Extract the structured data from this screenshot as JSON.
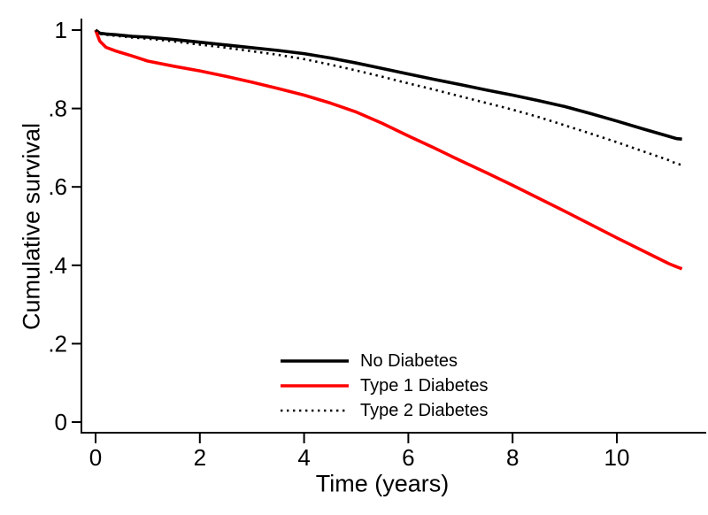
{
  "chart_data": {
    "type": "line",
    "title": "",
    "xlabel": "Time (years)",
    "ylabel": "Cumulative survival",
    "xlim": [
      0,
      11.72
    ],
    "ylim": [
      0,
      1.03
    ],
    "grid": false,
    "legend_position": "inside-bottom-center",
    "x_ticks": {
      "values": [
        0,
        2,
        4,
        6,
        8,
        10
      ],
      "labels": [
        "0",
        "2",
        "4",
        "6",
        "8",
        "10"
      ]
    },
    "y_ticks": {
      "values": [
        0,
        0.2,
        0.4,
        0.6,
        0.8,
        1.0
      ],
      "labels": [
        "0",
        ".2",
        ".4",
        ".6",
        ".8",
        "1"
      ]
    },
    "x": [
      0,
      0.08,
      0.2,
      0.4,
      0.7,
      1,
      1.5,
      2,
      2.5,
      3,
      3.5,
      4,
      4.5,
      5,
      5.5,
      6,
      6.5,
      7,
      7.5,
      8,
      8.5,
      9,
      9.5,
      10,
      10.5,
      11,
      11.15,
      11.25
    ],
    "series": [
      {
        "name": "No Diabetes",
        "color": "#000000",
        "style": "solid",
        "values": [
          1.0,
          0.992,
          0.99,
          0.988,
          0.984,
          0.982,
          0.976,
          0.969,
          0.962,
          0.955,
          0.948,
          0.94,
          0.929,
          0.916,
          0.902,
          0.888,
          0.874,
          0.861,
          0.847,
          0.834,
          0.82,
          0.805,
          0.787,
          0.768,
          0.748,
          0.729,
          0.723,
          0.722
        ]
      },
      {
        "name": "Type 1 Diabetes",
        "color": "#ff0000",
        "style": "solid",
        "values": [
          1.0,
          0.972,
          0.956,
          0.946,
          0.934,
          0.921,
          0.908,
          0.896,
          0.882,
          0.867,
          0.851,
          0.834,
          0.814,
          0.791,
          0.762,
          0.73,
          0.699,
          0.667,
          0.636,
          0.604,
          0.571,
          0.538,
          0.504,
          0.47,
          0.437,
          0.404,
          0.396,
          0.391
        ]
      },
      {
        "name": "Type 2 Diabetes",
        "color": "#000000",
        "style": "dotted",
        "values": [
          1.0,
          0.99,
          0.988,
          0.985,
          0.981,
          0.978,
          0.971,
          0.963,
          0.955,
          0.946,
          0.937,
          0.926,
          0.912,
          0.897,
          0.881,
          0.864,
          0.848,
          0.831,
          0.814,
          0.797,
          0.778,
          0.757,
          0.736,
          0.714,
          0.691,
          0.668,
          0.659,
          0.656
        ]
      }
    ],
    "colors": {
      "axis": "#000000",
      "background": "#ffffff",
      "type1_red": "#ff0000"
    }
  }
}
